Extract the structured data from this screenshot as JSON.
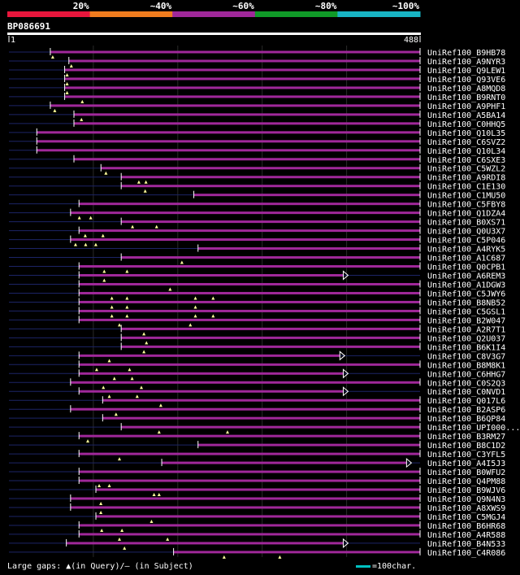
{
  "identity_scale": {
    "labels": [
      "20%",
      "~40%",
      "~60%",
      "~80%",
      "~100%"
    ],
    "colors": [
      "#e8163c",
      "#f07c1e",
      "#a0289a",
      "#109a28",
      "#18b4c4"
    ]
  },
  "query": {
    "id": "BP086691",
    "start": 1,
    "end": 488
  },
  "colors": {
    "hit": "#a0289a",
    "dim": "#1c2466",
    "gap": "#ffff9c"
  },
  "hits": [
    {
      "label": "UniRef100_B9HB78",
      "s": 50,
      "e": 488,
      "g": [
        0
      ],
      "arrow": false
    },
    {
      "label": "UniRef100_A9NYR3",
      "s": 72,
      "e": 488,
      "g": [
        0
      ],
      "arrow": false
    },
    {
      "label": "UniRef100_Q9LEW1",
      "s": 67,
      "e": 488,
      "g": [
        0
      ],
      "arrow": false
    },
    {
      "label": "UniRef100_Q93VE6",
      "s": 67,
      "e": 488,
      "g": [
        0
      ],
      "arrow": false
    },
    {
      "label": "UniRef100_A8MQD8",
      "s": 67,
      "e": 488,
      "g": [
        0
      ],
      "arrow": false
    },
    {
      "label": "UniRef100_B9RNT0",
      "s": 67,
      "e": 488,
      "g": [
        0.6
      ],
      "arrow": false
    },
    {
      "label": "UniRef100_A9PHF1",
      "s": 50,
      "e": 488,
      "g": [
        0.08
      ],
      "arrow": false
    },
    {
      "label": "UniRef100_A5BA14",
      "s": 78,
      "e": 488,
      "g": [
        0.2
      ],
      "arrow": false
    },
    {
      "label": "UniRef100_C0HHQ5",
      "s": 78,
      "e": 488,
      "g": [],
      "arrow": false
    },
    {
      "label": "UniRef100_Q10L35",
      "s": 34,
      "e": 488,
      "g": [],
      "arrow": false
    },
    {
      "label": "UniRef100_C6SVZ2",
      "s": 34,
      "e": 488,
      "g": [],
      "arrow": false
    },
    {
      "label": "UniRef100_Q10L34",
      "s": 34,
      "e": 488,
      "g": [],
      "arrow": false
    },
    {
      "label": "UniRef100_C6SXE3",
      "s": 78,
      "e": 488,
      "g": [],
      "arrow": false
    },
    {
      "label": "UniRef100_C5WZL2",
      "s": 110,
      "e": 488,
      "g": [
        0.1
      ],
      "arrow": false
    },
    {
      "label": "UniRef100_A9RDI8",
      "s": 134,
      "e": 488,
      "g": [
        0.6,
        0.88
      ],
      "arrow": false
    },
    {
      "label": "UniRef100_C1E130",
      "s": 134,
      "e": 488,
      "g": [
        0.85
      ],
      "arrow": false
    },
    {
      "label": "UniRef100_C1MU50",
      "s": 220,
      "e": 488,
      "g": [],
      "arrow": false
    },
    {
      "label": "UniRef100_C5FBY8",
      "s": 84,
      "e": 488,
      "g": [],
      "arrow": false
    },
    {
      "label": "UniRef100_Q1DZA4",
      "s": 74,
      "e": 488,
      "g": [
        0.25,
        0.7
      ],
      "arrow": false
    },
    {
      "label": "UniRef100_B0XS71",
      "s": 134,
      "e": 488,
      "g": [
        0.35,
        1.3
      ],
      "arrow": false
    },
    {
      "label": "UniRef100_Q0U3X7",
      "s": 84,
      "e": 488,
      "g": [
        0.15,
        0.85
      ],
      "arrow": false
    },
    {
      "label": "UniRef100_C5P046",
      "s": 74,
      "e": 488,
      "g": [
        0.1,
        0.5,
        0.9
      ],
      "arrow": false
    },
    {
      "label": "UniRef100_A4RYK5",
      "s": 225,
      "e": 488,
      "g": [],
      "arrow": false
    },
    {
      "label": "UniRef100_A1C687",
      "s": 134,
      "e": 488,
      "g": [
        2.3
      ],
      "arrow": false
    },
    {
      "label": "UniRef100_Q0CPB1",
      "s": 84,
      "e": 488,
      "g": [
        0.9,
        1.8
      ],
      "arrow": false
    },
    {
      "label": "UniRef100_A6REM3",
      "s": 84,
      "e": 397,
      "g": [
        0.9
      ],
      "arrow": true
    },
    {
      "label": "UniRef100_A1DGW3",
      "s": 84,
      "e": 488,
      "g": [
        3.5
      ],
      "arrow": false
    },
    {
      "label": "UniRef100_C5JWY6",
      "s": 84,
      "e": 488,
      "g": [
        1.2,
        1.8,
        4.5,
        5.2
      ],
      "arrow": false
    },
    {
      "label": "UniRef100_B8NB52",
      "s": 84,
      "e": 488,
      "g": [
        1.2,
        1.8,
        4.5
      ],
      "arrow": false
    },
    {
      "label": "UniRef100_C5GSL1",
      "s": 84,
      "e": 488,
      "g": [
        1.2,
        1.8,
        4.5,
        5.2
      ],
      "arrow": false
    },
    {
      "label": "UniRef100_B2W047",
      "s": 84,
      "e": 488,
      "g": [
        1.5,
        4.3
      ],
      "arrow": false
    },
    {
      "label": "UniRef100_A2R7T1",
      "s": 134,
      "e": 488,
      "g": [
        0.8
      ],
      "arrow": false
    },
    {
      "label": "UniRef100_Q2U037",
      "s": 134,
      "e": 488,
      "g": [
        0.9
      ],
      "arrow": false
    },
    {
      "label": "UniRef100_B6K1I4",
      "s": 134,
      "e": 488,
      "g": [
        0.8
      ],
      "arrow": false
    },
    {
      "label": "UniRef100_C8V3G7",
      "s": 84,
      "e": 393,
      "g": [
        1.1
      ],
      "arrow": true
    },
    {
      "label": "UniRef100_B8M8K1",
      "s": 84,
      "e": 488,
      "g": [
        0.6,
        1.9
      ],
      "arrow": false
    },
    {
      "label": "UniRef100_C6HHG7",
      "s": 84,
      "e": 397,
      "g": [
        1.3,
        2.0
      ],
      "arrow": true
    },
    {
      "label": "UniRef100_C0S2Q3",
      "s": 74,
      "e": 488,
      "g": [
        1.2,
        2.7
      ],
      "arrow": false
    },
    {
      "label": "UniRef100_C0NVD1",
      "s": 84,
      "e": 397,
      "g": [
        1.1,
        2.2
      ],
      "arrow": true
    },
    {
      "label": "UniRef100_Q017L6",
      "s": 112,
      "e": 488,
      "g": [
        2.2
      ],
      "arrow": false
    },
    {
      "label": "UniRef100_B2ASP6",
      "s": 74,
      "e": 488,
      "g": [
        1.7
      ],
      "arrow": false
    },
    {
      "label": "UniRef100_B6QP84",
      "s": 112,
      "e": 488,
      "g": [],
      "arrow": false
    },
    {
      "label": "UniRef100_UPI000...",
      "s": 134,
      "e": 488,
      "g": [
        1.4,
        4.1
      ],
      "arrow": false
    },
    {
      "label": "UniRef100_B3RM27",
      "s": 84,
      "e": 488,
      "g": [
        0.25
      ],
      "arrow": false
    },
    {
      "label": "UniRef100_B8C1D2",
      "s": 225,
      "e": 488,
      "g": [],
      "arrow": false
    },
    {
      "label": "UniRef100_C3YFL5",
      "s": 84,
      "e": 488,
      "g": [
        1.5
      ],
      "arrow": false
    },
    {
      "label": "UniRef100_A4I5J3",
      "s": 182,
      "e": 472,
      "g": [],
      "arrow": true
    },
    {
      "label": "UniRef100_B0WFU2",
      "s": 84,
      "e": 488,
      "g": [],
      "arrow": false
    },
    {
      "label": "UniRef100_Q4PM88",
      "s": 84,
      "e": 488,
      "g": [
        0.7,
        1.1
      ],
      "arrow": false
    },
    {
      "label": "UniRef100_B9WJV6",
      "s": 104,
      "e": 488,
      "g": [
        2.2,
        2.4
      ],
      "arrow": false
    },
    {
      "label": "UniRef100_Q9N4N3",
      "s": 74,
      "e": 488,
      "g": [
        1.1
      ],
      "arrow": false
    },
    {
      "label": "UniRef100_A8XWS9",
      "s": 74,
      "e": 488,
      "g": [
        1.1
      ],
      "arrow": false
    },
    {
      "label": "UniRef100_C5MGJ4",
      "s": 104,
      "e": 488,
      "g": [
        2.1
      ],
      "arrow": false
    },
    {
      "label": "UniRef100_B6HR68",
      "s": 84,
      "e": 488,
      "g": [
        0.8,
        1.6
      ],
      "arrow": false
    },
    {
      "label": "UniRef100_A4R588",
      "s": 84,
      "e": 488,
      "g": [
        1.5,
        3.4
      ],
      "arrow": false
    },
    {
      "label": "UniRef100_B4N533",
      "s": 69,
      "e": 397,
      "g": [
        2.2
      ],
      "arrow": true
    },
    {
      "label": "UniRef100_C4R086",
      "s": 196,
      "e": 488,
      "g": [
        1.9,
        4.1
      ],
      "arrow": false
    }
  ],
  "footer": {
    "text": "Large gaps: ▲(in Query)/– (in Subject)",
    "legend_text": "=100char."
  }
}
